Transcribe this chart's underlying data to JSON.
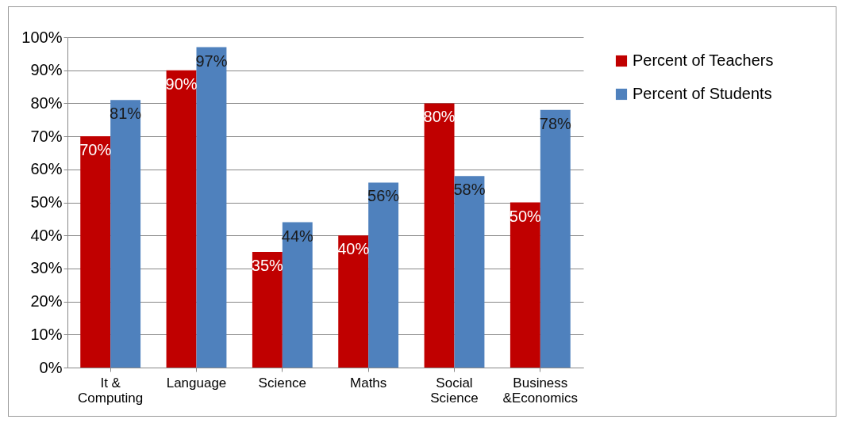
{
  "chart_data": {
    "type": "bar",
    "categories": [
      "It & Computing",
      "Language",
      "Science",
      "Maths",
      "Social Science",
      "Business &Economics"
    ],
    "series": [
      {
        "name": "Percent of Teachers",
        "color": "#c00000",
        "values": [
          70,
          90,
          35,
          40,
          80,
          50
        ],
        "value_labels": [
          "70%",
          "90%",
          "35%",
          "40%",
          "80%",
          "50%"
        ]
      },
      {
        "name": "Percent of Students",
        "color": "#4f81bd",
        "values": [
          81,
          97,
          44,
          56,
          58,
          78
        ],
        "value_labels": [
          "81%",
          "97%",
          "44%",
          "56%",
          "58%",
          "78%"
        ]
      }
    ],
    "ylim": [
      0,
      100
    ],
    "yticks": [
      {
        "value": 0,
        "label": "0%"
      },
      {
        "value": 10,
        "label": "10%"
      },
      {
        "value": 20,
        "label": "20%"
      },
      {
        "value": 30,
        "label": "30%"
      },
      {
        "value": 40,
        "label": "40%"
      },
      {
        "value": 50,
        "label": "50%"
      },
      {
        "value": 60,
        "label": "60%"
      },
      {
        "value": 70,
        "label": "70%"
      },
      {
        "value": 80,
        "label": "80%"
      },
      {
        "value": 90,
        "label": "90%"
      },
      {
        "value": 100,
        "label": "100%"
      }
    ],
    "grid": true,
    "legend": "right"
  }
}
